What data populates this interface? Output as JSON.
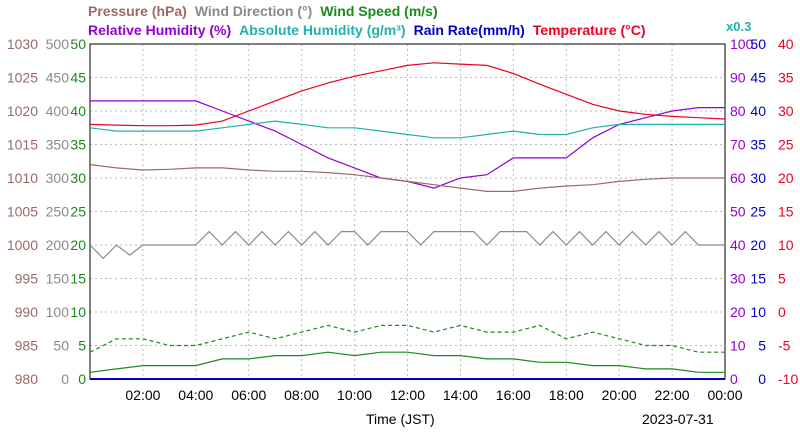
{
  "header": {
    "row1": [
      {
        "text": "Pressure (hPa)",
        "color": "#9a6a6a"
      },
      {
        "text": "Wind Direction (°)",
        "color": "#8a8a8a"
      },
      {
        "text": "Wind Speed (m/s)",
        "color": "#1a8a1a"
      }
    ],
    "row2": [
      {
        "text": "Relative Humidity (%)",
        "color": "#9400d3"
      },
      {
        "text": "Absolute Humidity (g/m³)",
        "color": "#20b2aa"
      },
      {
        "text": "Rain Rate(mm/h)",
        "color": "#0000cc"
      },
      {
        "text": "Temperature (°C)",
        "color": "#ee0022"
      }
    ],
    "multiplier": "x0.3",
    "multiplier_color": "#20b2aa"
  },
  "footer": {
    "xlabel": "Time (JST)",
    "date": "2023-07-31"
  },
  "chart_data": {
    "type": "line",
    "x_ticks": [
      "02:00",
      "04:00",
      "06:00",
      "08:00",
      "10:00",
      "12:00",
      "14:00",
      "16:00",
      "18:00",
      "20:00",
      "22:00",
      "00:00"
    ],
    "x_range_hours": [
      0,
      24
    ],
    "grid": true,
    "y_axes": {
      "pressure": {
        "label": "Pressure (hPa)",
        "color": "#9a6a6a",
        "ticks": [
          "980",
          "985",
          "990",
          "995",
          "1000",
          "1005",
          "1010",
          "1015",
          "1020",
          "1025",
          "1030"
        ],
        "range": [
          980,
          1030
        ]
      },
      "wind_direction": {
        "label": "Wind Direction (°)",
        "color": "#8a8a8a",
        "ticks": [
          "0",
          "50",
          "100",
          "150",
          "200",
          "250",
          "300",
          "350",
          "400",
          "450",
          "500"
        ],
        "range": [
          0,
          500
        ]
      },
      "wind_speed": {
        "label": "Wind Speed (m/s)",
        "color": "#1a8a1a",
        "ticks": [
          "0",
          "5",
          "10",
          "15",
          "20",
          "25",
          "30",
          "35",
          "40",
          "45",
          "50"
        ],
        "range": [
          0,
          50
        ]
      },
      "relative_humidity": {
        "label": "Relative Humidity (%)",
        "color": "#9400d3",
        "ticks": [
          "0",
          "10",
          "20",
          "30",
          "40",
          "50",
          "60",
          "70",
          "80",
          "90",
          "100"
        ],
        "range": [
          0,
          100
        ]
      },
      "rain_rate": {
        "label": "Rain Rate(mm/h)",
        "color": "#0000cc",
        "ticks": [
          "0",
          "5",
          "10",
          "15",
          "20",
          "25",
          "30",
          "35",
          "40",
          "45",
          "50"
        ],
        "range": [
          0,
          50
        ]
      },
      "temperature": {
        "label": "Temperature (°C)",
        "color": "#ee0022",
        "ticks": [
          "-10",
          "-5",
          "0",
          "5",
          "10",
          "15",
          "20",
          "25",
          "30",
          "35",
          "40"
        ],
        "range": [
          -10,
          40
        ]
      }
    },
    "series": [
      {
        "name": "Temperature (°C)",
        "axis": "temperature",
        "color": "#ee0022",
        "style": "solid",
        "x": [
          0,
          1,
          2,
          3,
          4,
          5,
          6,
          7,
          8,
          9,
          10,
          11,
          12,
          13,
          14,
          15,
          16,
          17,
          18,
          19,
          20,
          21,
          22,
          23,
          24
        ],
        "y": [
          28.0,
          27.9,
          27.8,
          27.8,
          27.9,
          28.5,
          30.0,
          31.5,
          33.0,
          34.2,
          35.2,
          36.0,
          36.8,
          37.2,
          37.0,
          36.8,
          35.6,
          34.0,
          32.5,
          31.0,
          30.0,
          29.5,
          29.2,
          29.0,
          28.8
        ]
      },
      {
        "name": "Relative Humidity (%)",
        "axis": "relative_humidity",
        "color": "#9400d3",
        "style": "solid",
        "x": [
          0,
          1,
          2,
          3,
          4,
          5,
          6,
          7,
          8,
          9,
          10,
          11,
          12,
          13,
          14,
          15,
          16,
          17,
          18,
          19,
          20,
          21,
          22,
          23,
          24
        ],
        "y": [
          83,
          83,
          83,
          83,
          83,
          80,
          77,
          74,
          70,
          66,
          63,
          60,
          59,
          57,
          60,
          61,
          66,
          66,
          66,
          72,
          76,
          78,
          80,
          81,
          81
        ]
      },
      {
        "name": "Absolute Humidity (g/m³)",
        "axis": "wind_speed",
        "scale": "x0.3",
        "color": "#20b2aa",
        "style": "solid",
        "x": [
          0,
          1,
          2,
          3,
          4,
          5,
          6,
          7,
          8,
          9,
          10,
          11,
          12,
          13,
          14,
          15,
          16,
          17,
          18,
          19,
          20,
          21,
          22,
          23,
          24
        ],
        "y": [
          37.5,
          37.0,
          37.0,
          37.0,
          37.0,
          37.5,
          38.0,
          38.5,
          38.0,
          37.5,
          37.5,
          37.0,
          36.5,
          36.0,
          36.0,
          36.5,
          37.0,
          36.5,
          36.5,
          37.5,
          38.0,
          38.0,
          38.0,
          38.0,
          38.0
        ]
      },
      {
        "name": "Pressure (hPa)",
        "axis": "pressure",
        "color": "#9a6a6a",
        "style": "solid",
        "x": [
          0,
          1,
          2,
          3,
          4,
          5,
          6,
          7,
          8,
          9,
          10,
          11,
          12,
          13,
          14,
          15,
          16,
          17,
          18,
          19,
          20,
          21,
          22,
          23,
          24
        ],
        "y": [
          1012.0,
          1011.5,
          1011.2,
          1011.3,
          1011.5,
          1011.5,
          1011.2,
          1011.0,
          1011.0,
          1010.8,
          1010.5,
          1010.0,
          1009.5,
          1009.0,
          1008.5,
          1008.0,
          1008.0,
          1008.5,
          1008.8,
          1009.0,
          1009.5,
          1009.8,
          1010.0,
          1010.0,
          1010.0
        ]
      },
      {
        "name": "Wind Direction (°)",
        "axis": "wind_direction",
        "color": "#8a8a8a",
        "style": "solid",
        "x": [
          0,
          0.5,
          1,
          1.5,
          2,
          2.5,
          3,
          3.5,
          4,
          4.5,
          5,
          5.5,
          6,
          6.5,
          7,
          7.5,
          8,
          8.5,
          9,
          9.5,
          10,
          10.5,
          11,
          11.5,
          12,
          12.5,
          13,
          13.5,
          14,
          14.5,
          15,
          15.5,
          16,
          16.5,
          17,
          17.5,
          18,
          18.5,
          19,
          19.5,
          20,
          20.5,
          21,
          21.5,
          22,
          22.5,
          23,
          23.5,
          24
        ],
        "y": [
          200,
          180,
          200,
          185,
          200,
          200,
          200,
          200,
          200,
          220,
          200,
          220,
          200,
          220,
          200,
          220,
          200,
          220,
          200,
          220,
          220,
          200,
          220,
          220,
          220,
          200,
          220,
          220,
          220,
          220,
          200,
          220,
          220,
          220,
          200,
          220,
          200,
          220,
          200,
          220,
          200,
          220,
          200,
          220,
          200,
          220,
          200,
          200,
          200
        ]
      },
      {
        "name": "Wind Speed (m/s) max",
        "axis": "wind_speed",
        "color": "#1a8a1a",
        "style": "dashed",
        "x": [
          0,
          1,
          2,
          3,
          4,
          5,
          6,
          7,
          8,
          9,
          10,
          11,
          12,
          13,
          14,
          15,
          16,
          17,
          18,
          19,
          20,
          21,
          22,
          23,
          24
        ],
        "y": [
          4,
          6,
          6,
          5,
          5,
          6,
          7,
          6,
          7,
          8,
          7,
          8,
          8,
          7,
          8,
          7,
          7,
          8,
          6,
          7,
          6,
          5,
          5,
          4,
          4
        ]
      },
      {
        "name": "Wind Speed (m/s) mean",
        "axis": "wind_speed",
        "color": "#1a8a1a",
        "style": "solid",
        "x": [
          0,
          1,
          2,
          3,
          4,
          5,
          6,
          7,
          8,
          9,
          10,
          11,
          12,
          13,
          14,
          15,
          16,
          17,
          18,
          19,
          20,
          21,
          22,
          23,
          24
        ],
        "y": [
          1,
          1.5,
          2,
          2,
          2,
          3,
          3,
          3.5,
          3.5,
          4,
          3.5,
          4,
          4,
          3.5,
          3.5,
          3,
          3,
          2.5,
          2.5,
          2,
          2,
          1.5,
          1.5,
          1,
          1
        ]
      },
      {
        "name": "Rain Rate(mm/h)",
        "axis": "rain_rate",
        "color": "#0000cc",
        "style": "solid",
        "x": [
          0,
          24
        ],
        "y": [
          0,
          0
        ]
      }
    ]
  }
}
